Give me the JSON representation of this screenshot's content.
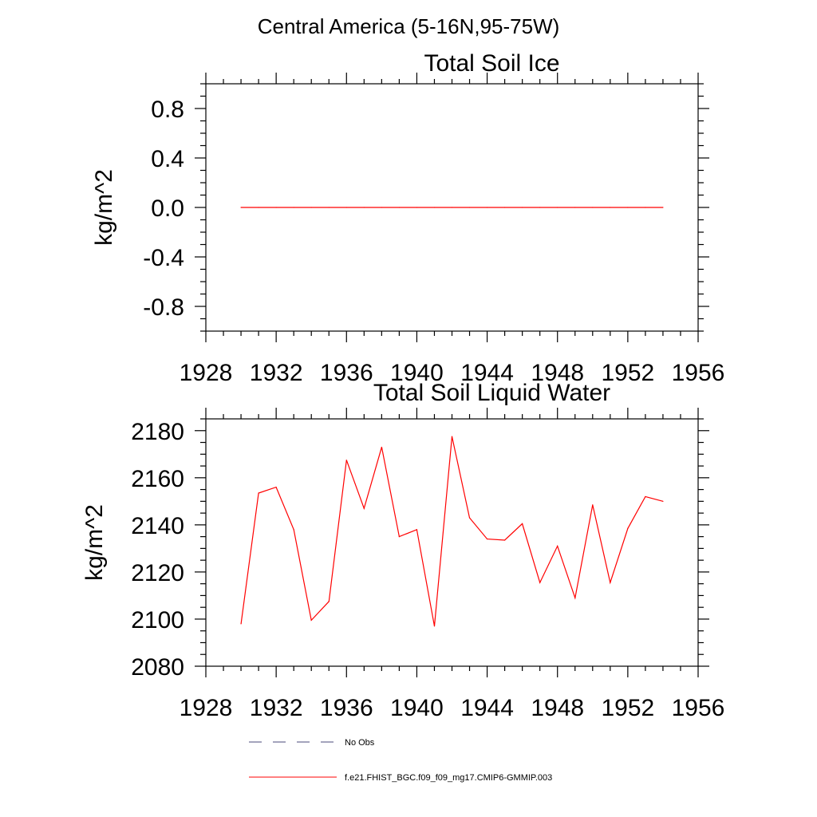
{
  "figure": {
    "suptitle": "Central America (5-16N,95-75W)"
  },
  "chart_data": [
    {
      "type": "line",
      "title": "Total Soil Ice",
      "xlabel": "",
      "ylabel": "kg/m^2",
      "xlim": [
        1928,
        1956
      ],
      "ylim": [
        -1.0,
        1.0
      ],
      "xticks": [
        1928,
        1932,
        1936,
        1940,
        1944,
        1948,
        1952,
        1956
      ],
      "yticks": [
        0.8,
        0.4,
        0.0,
        -0.4,
        -0.8
      ],
      "ytick_labels": [
        "0.8",
        "0.4",
        "0.0",
        "-0.4",
        "-0.8"
      ],
      "x": [
        1930,
        1931,
        1932,
        1933,
        1934,
        1935,
        1936,
        1937,
        1938,
        1939,
        1940,
        1941,
        1942,
        1943,
        1944,
        1945,
        1946,
        1947,
        1948,
        1949,
        1950,
        1951,
        1952,
        1953,
        1954
      ],
      "series": [
        {
          "name": "f.e21.FHIST_BGC.f09_f09_mg17.CMIP6-GMMIP.003",
          "color": "#ff0000",
          "values": [
            0,
            0,
            0,
            0,
            0,
            0,
            0,
            0,
            0,
            0,
            0,
            0,
            0,
            0,
            0,
            0,
            0,
            0,
            0,
            0,
            0,
            0,
            0,
            0,
            0
          ]
        }
      ]
    },
    {
      "type": "line",
      "title": "Total Soil Liquid Water",
      "xlabel": "",
      "ylabel": "kg/m^2",
      "xlim": [
        1928,
        1956
      ],
      "ylim": [
        2080,
        2185
      ],
      "xticks": [
        1928,
        1932,
        1936,
        1940,
        1944,
        1948,
        1952,
        1956
      ],
      "yticks": [
        2180,
        2160,
        2140,
        2120,
        2100,
        2080
      ],
      "ytick_labels": [
        "2180",
        "2160",
        "2140",
        "2120",
        "2100",
        "2080"
      ],
      "x": [
        1930,
        1931,
        1932,
        1933,
        1934,
        1935,
        1936,
        1937,
        1938,
        1939,
        1940,
        1941,
        1942,
        1943,
        1944,
        1945,
        1946,
        1947,
        1948,
        1949,
        1950,
        1951,
        1952,
        1953,
        1954
      ],
      "series": [
        {
          "name": "f.e21.FHIST_BGC.f09_f09_mg17.CMIP6-GMMIP.003",
          "color": "#ff0000",
          "values": [
            2098,
            2153.5,
            2156,
            2138,
            2099.5,
            2107.5,
            2167.5,
            2147,
            2173,
            2135,
            2138,
            2097,
            2177.5,
            2143,
            2134,
            2133.5,
            2140.5,
            2115.5,
            2131,
            2109,
            2148.5,
            2115.5,
            2138.5,
            2152,
            2150
          ]
        }
      ]
    }
  ],
  "legend": {
    "placement": "bottom-center",
    "entries": [
      {
        "label": "No Obs",
        "style": "dashed",
        "color": "#4a4a7a"
      },
      {
        "label": "f.e21.FHIST_BGC.f09_f09_mg17.CMIP6-GMMIP.003",
        "style": "solid",
        "color": "#ff0000"
      }
    ]
  }
}
